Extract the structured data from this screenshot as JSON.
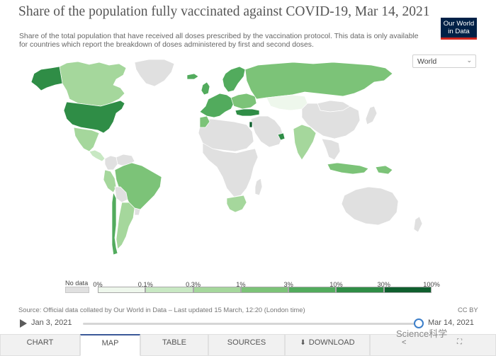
{
  "header": {
    "title": "Share of the population fully vaccinated against COVID-19, Mar 14, 2021",
    "subtitle": "Share of the total population that have received all doses prescribed by the vaccination protocol. This data is only available for countries which report the breakdown of doses administered by first and second doses."
  },
  "logo": {
    "line1": "Our World",
    "line2": "in Data"
  },
  "region_select": {
    "value": "World",
    "icon": "chevron-down-icon"
  },
  "legend": {
    "no_data_label": "No data",
    "ticks": [
      "0%",
      "0.1%",
      "0.3%",
      "1%",
      "3%",
      "10%",
      "30%",
      "100%"
    ],
    "bin_colors": [
      "#eef7ec",
      "#c8e8c3",
      "#a5d79c",
      "#7cc378",
      "#52ab5d",
      "#2f8d46",
      "#0f5f2e"
    ],
    "no_data_color": "#e0e0e0"
  },
  "source": {
    "text": "Source: Official data collated by Our World in Data – Last updated 15 March, 12:20 (London time)",
    "license": "CC BY"
  },
  "timeline": {
    "start": "Jan 3, 2021",
    "end": "Mar 14, 2021",
    "position": 1.0
  },
  "tabs": [
    {
      "label": "CHART",
      "active": false
    },
    {
      "label": "MAP",
      "active": true
    },
    {
      "label": "TABLE",
      "active": false
    },
    {
      "label": "SOURCES",
      "active": false
    },
    {
      "label": "DOWNLOAD",
      "active": false
    }
  ],
  "watermark": "Science科学",
  "map_regions": [
    {
      "name": "Canada",
      "color": "#a5d79c"
    },
    {
      "name": "Alaska",
      "color": "#2f8d46"
    },
    {
      "name": "USA",
      "color": "#2f8d46"
    },
    {
      "name": "Greenland",
      "color": "#e0e0e0"
    },
    {
      "name": "Mexico",
      "color": "#a5d79c"
    },
    {
      "name": "Central America",
      "color": "#c8e8c3"
    },
    {
      "name": "Colombia",
      "color": "#e0e0e0"
    },
    {
      "name": "Venezuela",
      "color": "#e0e0e0"
    },
    {
      "name": "Peru",
      "color": "#a5d79c"
    },
    {
      "name": "Brazil",
      "color": "#7cc378"
    },
    {
      "name": "Bolivia",
      "color": "#e0e0e0"
    },
    {
      "name": "Argentina",
      "color": "#a5d79c"
    },
    {
      "name": "Chile",
      "color": "#52ab5d"
    },
    {
      "name": "Uruguay",
      "color": "#e0e0e0"
    },
    {
      "name": "Iceland",
      "color": "#52ab5d"
    },
    {
      "name": "Scandinavia",
      "color": "#52ab5d"
    },
    {
      "name": "UK",
      "color": "#52ab5d"
    },
    {
      "name": "Western Europe",
      "color": "#52ab5d"
    },
    {
      "name": "Eastern Europe",
      "color": "#7cc378"
    },
    {
      "name": "Russia",
      "color": "#7cc378"
    },
    {
      "name": "Kazakhstan",
      "color": "#eef7ec"
    },
    {
      "name": "Turkey",
      "color": "#2f8d46"
    },
    {
      "name": "Middle East",
      "color": "#e0e0e0"
    },
    {
      "name": "Israel",
      "color": "#0f5f2e"
    },
    {
      "name": "UAE",
      "color": "#2f8d46"
    },
    {
      "name": "North Africa",
      "color": "#e0e0e0"
    },
    {
      "name": "Morocco",
      "color": "#7cc378"
    },
    {
      "name": "Sub-Saharan Africa",
      "color": "#e0e0e0"
    },
    {
      "name": "South Africa",
      "color": "#a5d79c"
    },
    {
      "name": "Madagascar",
      "color": "#e0e0e0"
    },
    {
      "name": "Mongolia",
      "color": "#e0e0e0"
    },
    {
      "name": "China",
      "color": "#e0e0e0"
    },
    {
      "name": "India",
      "color": "#a5d79c"
    },
    {
      "name": "Southeast Asia",
      "color": "#e0e0e0"
    },
    {
      "name": "Indonesia",
      "color": "#7cc378"
    },
    {
      "name": "Japan",
      "color": "#e0e0e0"
    },
    {
      "name": "Australia",
      "color": "#e0e0e0"
    },
    {
      "name": "New Zealand",
      "color": "#e0e0e0"
    },
    {
      "name": "Papua New Guinea",
      "color": "#7cc378"
    }
  ]
}
